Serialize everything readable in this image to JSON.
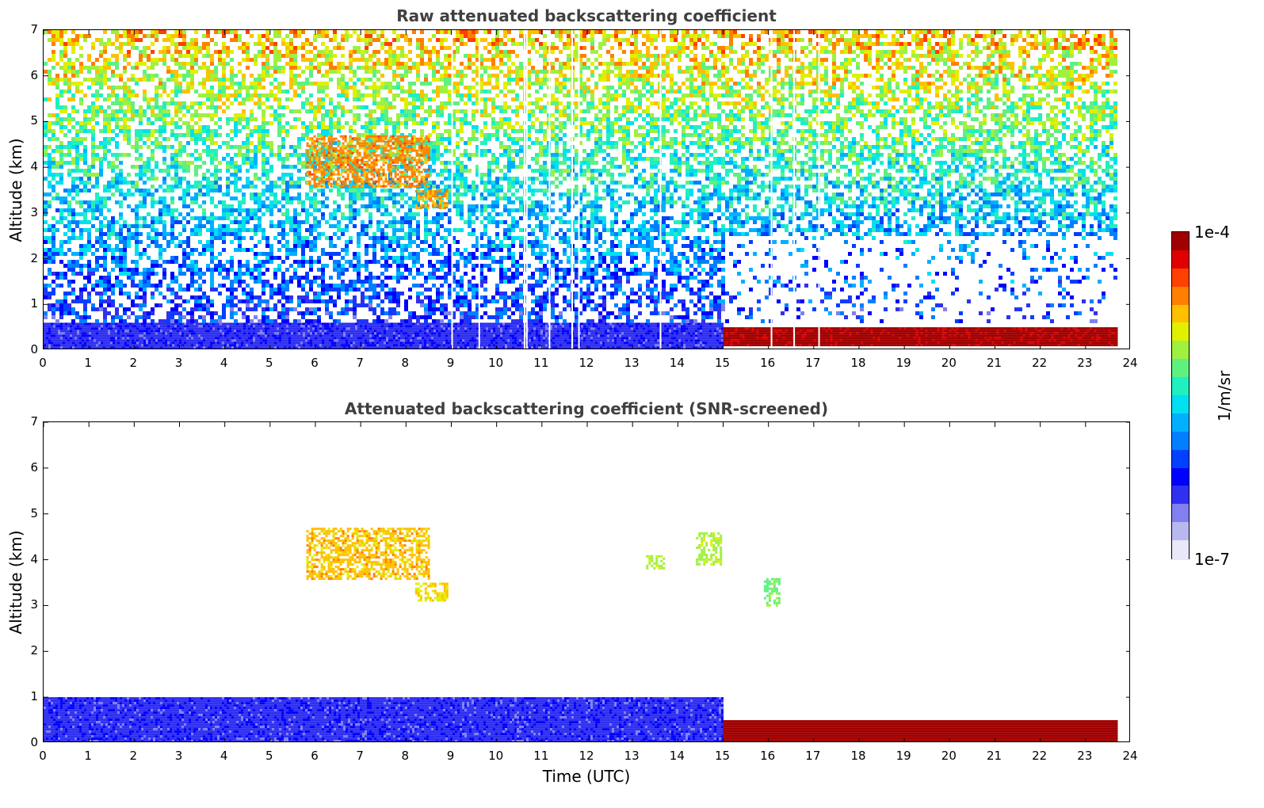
{
  "chart_data": [
    {
      "type": "heatmap",
      "title": "Raw attenuated backscattering coefficient",
      "xlabel": "",
      "ylabel": "Altitude (km)",
      "xlim": [
        0,
        24
      ],
      "ylim": [
        0,
        7
      ],
      "xticks": [
        "0",
        "1",
        "2",
        "3",
        "4",
        "5",
        "6",
        "7",
        "8",
        "9",
        "10",
        "11",
        "12",
        "13",
        "14",
        "15",
        "16",
        "17",
        "18",
        "19",
        "20",
        "21",
        "22",
        "23",
        "24"
      ],
      "yticks": [
        "0",
        "1",
        "2",
        "3",
        "4",
        "5",
        "6",
        "7"
      ],
      "regions": [
        {
          "name": "boundary-layer",
          "x": [
            0,
            15
          ],
          "y": [
            0,
            0.6
          ],
          "level": 0.2
        },
        {
          "name": "noise-upper",
          "x": [
            0,
            23.7
          ],
          "y": [
            0.6,
            7
          ],
          "level": 0.5
        },
        {
          "name": "aerosol-layer-6-8",
          "x": [
            5.8,
            8.5
          ],
          "y": [
            3.6,
            4.7
          ],
          "level": 0.8
        },
        {
          "name": "aerosol-layer-8.5",
          "x": [
            8.2,
            8.9
          ],
          "y": [
            3.1,
            3.5
          ],
          "level": 0.78
        },
        {
          "name": "cloud-15-23.7",
          "x": [
            15,
            23.7
          ],
          "y": [
            0.1,
            0.5
          ],
          "level": 0.97
        }
      ],
      "gaps": [
        9.0,
        9.6,
        10.6,
        10.65,
        11.15,
        11.65,
        11.8,
        13.6,
        16.05,
        16.55,
        17.1
      ]
    },
    {
      "type": "heatmap",
      "title": "Attenuated backscattering coefficient (SNR-screened)",
      "xlabel": "Time (UTC)",
      "ylabel": "Altitude (km)",
      "xlim": [
        0,
        24
      ],
      "ylim": [
        0,
        7
      ],
      "xticks": [
        "0",
        "1",
        "2",
        "3",
        "4",
        "5",
        "6",
        "7",
        "8",
        "9",
        "10",
        "11",
        "12",
        "13",
        "14",
        "15",
        "16",
        "17",
        "18",
        "19",
        "20",
        "21",
        "22",
        "23",
        "24"
      ],
      "yticks": [
        "0",
        "1",
        "2",
        "3",
        "4",
        "5",
        "6",
        "7"
      ],
      "regions": [
        {
          "name": "boundary-layer",
          "x": [
            0,
            15
          ],
          "y": [
            0,
            1.0
          ],
          "level": 0.2
        },
        {
          "name": "aerosol-layer-6-8",
          "x": [
            5.8,
            8.5
          ],
          "y": [
            3.6,
            4.7
          ],
          "level": 0.75
        },
        {
          "name": "aerosol-layer-8.5",
          "x": [
            8.2,
            8.9
          ],
          "y": [
            3.1,
            3.5
          ],
          "level": 0.72
        },
        {
          "name": "aerosol-14.5",
          "x": [
            14.4,
            14.95
          ],
          "y": [
            3.9,
            4.6
          ],
          "level": 0.65
        },
        {
          "name": "aerosol-13.5",
          "x": [
            13.3,
            13.7
          ],
          "y": [
            3.8,
            4.1
          ],
          "level": 0.65
        },
        {
          "name": "aerosol-16",
          "x": [
            15.9,
            16.25
          ],
          "y": [
            3.0,
            3.6
          ],
          "level": 0.6
        },
        {
          "name": "cloud-15-23.7",
          "x": [
            15,
            23.7
          ],
          "y": [
            0.05,
            0.5
          ],
          "level": 1.0
        }
      ]
    }
  ],
  "colorbar": {
    "max_label": "1e-4",
    "min_label": "1e-7",
    "unit": "1/m/sr",
    "colors": [
      "#e8e8f8",
      "#b8b8f0",
      "#8080f0",
      "#3030f0",
      "#0000ff",
      "#0040ff",
      "#0080ff",
      "#00b0ff",
      "#00e0f0",
      "#20f0c0",
      "#60f080",
      "#a0f040",
      "#e0f000",
      "#ffc000",
      "#ff8000",
      "#ff4000",
      "#e00000",
      "#a00000"
    ]
  }
}
